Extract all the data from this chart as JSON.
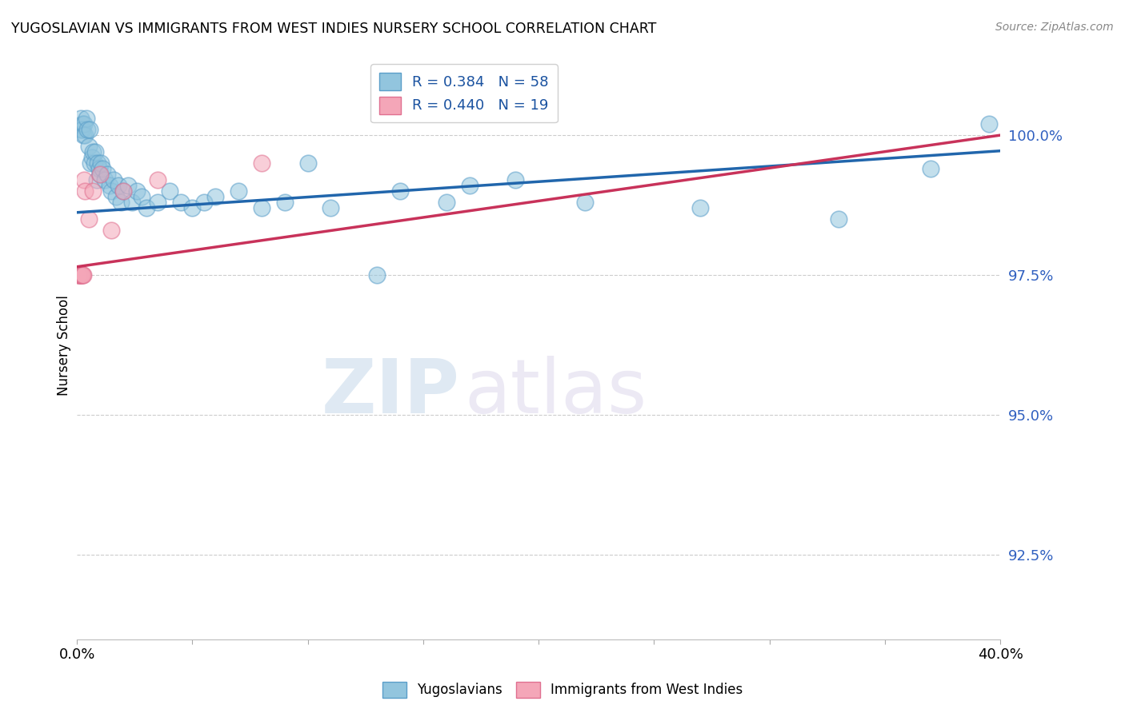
{
  "title": "YUGOSLAVIAN VS IMMIGRANTS FROM WEST INDIES NURSERY SCHOOL CORRELATION CHART",
  "source": "Source: ZipAtlas.com",
  "ylabel": "Nursery School",
  "y_ticks": [
    92.5,
    95.0,
    97.5,
    100.0
  ],
  "y_tick_labels": [
    "92.5%",
    "95.0%",
    "97.5%",
    "100.0%"
  ],
  "x_lim": [
    0.0,
    40.0
  ],
  "y_lim": [
    91.0,
    101.5
  ],
  "legend_label_blue": "Yugoslavians",
  "legend_label_pink": "Immigrants from West Indies",
  "R_blue": 0.384,
  "N_blue": 58,
  "R_pink": 0.44,
  "N_pink": 19,
  "blue_color": "#92c5de",
  "pink_color": "#f4a6b8",
  "blue_edge_color": "#5a9ec9",
  "pink_edge_color": "#e07090",
  "blue_line_color": "#2166ac",
  "pink_line_color": "#c8325a",
  "watermark_zip": "ZIP",
  "watermark_atlas": "atlas",
  "blue_x": [
    0.15,
    0.18,
    0.2,
    0.22,
    0.25,
    0.28,
    0.3,
    0.35,
    0.4,
    0.45,
    0.5,
    0.55,
    0.6,
    0.65,
    0.7,
    0.75,
    0.8,
    0.85,
    0.9,
    0.95,
    1.0,
    1.05,
    1.1,
    1.2,
    1.3,
    1.4,
    1.5,
    1.6,
    1.7,
    1.8,
    1.9,
    2.0,
    2.2,
    2.4,
    2.6,
    2.8,
    3.0,
    3.5,
    4.0,
    4.5,
    5.0,
    5.5,
    6.0,
    7.0,
    8.0,
    9.0,
    10.0,
    11.0,
    13.0,
    14.0,
    16.0,
    17.0,
    19.0,
    22.0,
    27.0,
    33.0,
    37.0,
    39.5
  ],
  "blue_y": [
    100.1,
    100.3,
    100.1,
    100.2,
    100.1,
    100.0,
    100.2,
    100.0,
    100.3,
    100.1,
    99.8,
    100.1,
    99.5,
    99.6,
    99.7,
    99.5,
    99.7,
    99.2,
    99.5,
    99.4,
    99.3,
    99.5,
    99.4,
    99.2,
    99.3,
    99.1,
    99.0,
    99.2,
    98.9,
    99.1,
    98.8,
    99.0,
    99.1,
    98.8,
    99.0,
    98.9,
    98.7,
    98.8,
    99.0,
    98.8,
    98.7,
    98.8,
    98.9,
    99.0,
    98.7,
    98.8,
    99.5,
    98.7,
    97.5,
    99.0,
    98.8,
    99.1,
    99.2,
    98.8,
    98.7,
    98.5,
    99.4,
    100.2
  ],
  "pink_x": [
    0.05,
    0.08,
    0.1,
    0.12,
    0.15,
    0.18,
    0.2,
    0.22,
    0.25,
    0.28,
    0.3,
    0.35,
    0.5,
    0.7,
    1.0,
    1.5,
    2.0,
    3.5,
    8.0
  ],
  "pink_y": [
    97.5,
    97.5,
    97.5,
    97.5,
    97.5,
    97.5,
    97.5,
    97.5,
    97.5,
    97.5,
    99.2,
    99.0,
    98.5,
    99.0,
    99.3,
    98.3,
    99.0,
    99.2,
    99.5
  ],
  "blue_trendline_x": [
    0.0,
    40.0
  ],
  "blue_trendline_y": [
    98.62,
    99.72
  ],
  "pink_trendline_x": [
    0.0,
    40.0
  ],
  "pink_trendline_y": [
    97.65,
    100.0
  ]
}
